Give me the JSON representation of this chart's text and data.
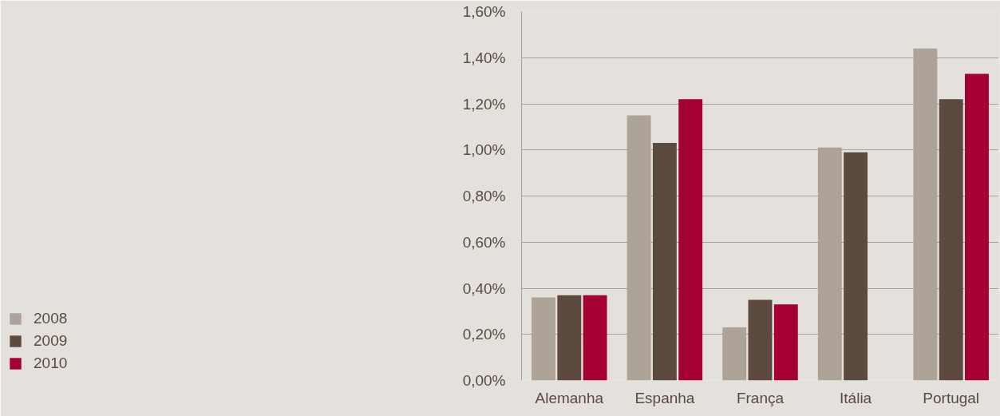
{
  "chart_data": {
    "type": "bar",
    "categories": [
      "Alemanha",
      "Espanha",
      "França",
      "Itália",
      "Portugal"
    ],
    "series": [
      {
        "name": "2008",
        "color": "#ada399",
        "values": [
          0.36,
          1.15,
          0.23,
          1.01,
          1.44
        ]
      },
      {
        "name": "2009",
        "color": "#5c4a3f",
        "values": [
          0.37,
          1.03,
          0.35,
          0.99,
          1.22
        ]
      },
      {
        "name": "2010",
        "color": "#a50034",
        "values": [
          0.37,
          1.22,
          0.33,
          null,
          1.33
        ]
      }
    ],
    "ylim": [
      0,
      1.6
    ],
    "yticks": [
      {
        "value": 0,
        "label": "0,00%"
      },
      {
        "value": 0.2,
        "label": "0,20%"
      },
      {
        "value": 0.4,
        "label": "0,40%"
      },
      {
        "value": 0.6,
        "label": "0,60%"
      },
      {
        "value": 0.8,
        "label": "0,80%"
      },
      {
        "value": 1.0,
        "label": "1,00%"
      },
      {
        "value": 1.2,
        "label": "1,20%"
      },
      {
        "value": 1.4,
        "label": "1,40%"
      },
      {
        "value": 1.6,
        "label": "1,60%"
      }
    ],
    "grid": "y",
    "legend": "bottom left"
  }
}
